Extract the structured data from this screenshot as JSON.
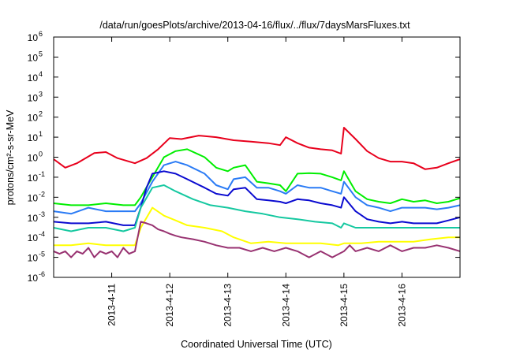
{
  "chart_data": {
    "type": "line",
    "title": "/data/run/goesPlots/archive/2013-04-16/flux/../flux/7daysMarsFluxes.txt",
    "xlabel": "Coordinated Universal Time (UTC)",
    "ylabel": "protons/cm²-s-sr-MeV",
    "y_scale": "log",
    "ylim": [
      1e-06,
      1000000.0
    ],
    "x_unit": "days",
    "xlim": [
      "2013-04-10 00:00",
      "2013-04-17 00:00"
    ],
    "grid": false,
    "legend": "none",
    "x_ticks": [
      {
        "label": "2013-4-11",
        "day": 1
      },
      {
        "label": "2013-4-12",
        "day": 2
      },
      {
        "label": "2013-4-13",
        "day": 3
      },
      {
        "label": "2013-4-14",
        "day": 4
      },
      {
        "label": "2013-4-15",
        "day": 5
      },
      {
        "label": "2013-4-16",
        "day": 6
      }
    ],
    "y_ticks": [
      {
        "base": "10",
        "exp": "-6",
        "value": -6
      },
      {
        "base": "10",
        "exp": "-5",
        "value": -5
      },
      {
        "base": "10",
        "exp": "-4",
        "value": -4
      },
      {
        "base": "10",
        "exp": "-3",
        "value": -3
      },
      {
        "base": "10",
        "exp": "-2",
        "value": -2
      },
      {
        "base": "10",
        "exp": "-1",
        "value": -1
      },
      {
        "base": "10",
        "exp": "0",
        "value": 0
      },
      {
        "base": "10",
        "exp": "1",
        "value": 1
      },
      {
        "base": "10",
        "exp": "2",
        "value": 2
      },
      {
        "base": "10",
        "exp": "3",
        "value": 3
      },
      {
        "base": "10",
        "exp": "4",
        "value": 4
      },
      {
        "base": "10",
        "exp": "5",
        "value": 5
      },
      {
        "base": "10",
        "exp": "6",
        "value": 6
      }
    ],
    "series": [
      {
        "color": "#e8001c",
        "x": [
          0,
          0.2,
          0.4,
          0.7,
          0.9,
          1.1,
          1.4,
          1.6,
          1.8,
          2.0,
          2.2,
          2.5,
          2.8,
          3.1,
          3.4,
          3.7,
          3.9,
          4.0,
          4.2,
          4.4,
          4.6,
          4.8,
          4.95,
          5.0,
          5.2,
          5.4,
          5.6,
          5.8,
          6.0,
          6.2,
          6.4,
          6.6,
          6.8,
          7.0
        ],
        "y": [
          0.8,
          0.3,
          0.5,
          1.6,
          1.8,
          0.9,
          0.5,
          0.9,
          2.5,
          9,
          8,
          12,
          10,
          7,
          6,
          5,
          4,
          10,
          5,
          3,
          2.5,
          2.2,
          1.5,
          30,
          8,
          2,
          0.9,
          0.6,
          0.6,
          0.5,
          0.25,
          0.3,
          0.5,
          0.8
        ]
      },
      {
        "color": "#00ee00",
        "x": [
          0,
          0.3,
          0.6,
          0.9,
          1.2,
          1.4,
          1.5,
          1.7,
          1.9,
          2.1,
          2.3,
          2.6,
          2.8,
          3.0,
          3.1,
          3.3,
          3.5,
          3.7,
          3.9,
          4.0,
          4.2,
          4.4,
          4.6,
          4.8,
          4.95,
          5.0,
          5.2,
          5.4,
          5.6,
          5.8,
          6.0,
          6.2,
          6.4,
          6.6,
          6.8,
          7.0
        ],
        "y": [
          0.005,
          0.004,
          0.004,
          0.005,
          0.004,
          0.004,
          0.01,
          0.1,
          1.0,
          2.0,
          2.5,
          1.0,
          0.3,
          0.2,
          0.3,
          0.4,
          0.06,
          0.05,
          0.04,
          0.02,
          0.15,
          0.16,
          0.15,
          0.1,
          0.07,
          0.2,
          0.02,
          0.008,
          0.006,
          0.005,
          0.008,
          0.006,
          0.007,
          0.005,
          0.006,
          0.009
        ]
      },
      {
        "color": "#2a7bf5",
        "x": [
          0,
          0.3,
          0.6,
          0.9,
          1.2,
          1.4,
          1.5,
          1.7,
          1.9,
          2.1,
          2.3,
          2.6,
          2.8,
          3.0,
          3.1,
          3.3,
          3.5,
          3.7,
          3.9,
          4.0,
          4.2,
          4.4,
          4.6,
          4.8,
          4.95,
          5.0,
          5.2,
          5.4,
          5.6,
          5.8,
          6.0,
          6.2,
          6.4,
          6.6,
          6.8,
          7.0
        ],
        "y": [
          0.002,
          0.0015,
          0.003,
          0.002,
          0.002,
          0.002,
          0.005,
          0.06,
          0.4,
          0.6,
          0.4,
          0.15,
          0.04,
          0.025,
          0.08,
          0.1,
          0.03,
          0.03,
          0.02,
          0.015,
          0.04,
          0.03,
          0.03,
          0.02,
          0.015,
          0.06,
          0.01,
          0.004,
          0.003,
          0.002,
          0.003,
          0.003,
          0.003,
          0.0025,
          0.003,
          0.004
        ]
      },
      {
        "color": "#0a0ad0",
        "x": [
          0,
          0.3,
          0.6,
          0.9,
          1.2,
          1.4,
          1.5,
          1.6,
          1.7,
          1.9,
          2.1,
          2.3,
          2.6,
          2.8,
          3.0,
          3.1,
          3.3,
          3.5,
          3.7,
          3.9,
          4.0,
          4.2,
          4.4,
          4.6,
          4.8,
          4.95,
          5.0,
          5.2,
          5.4,
          5.6,
          5.8,
          6.0,
          6.2,
          6.4,
          6.6,
          6.8,
          7.0
        ],
        "y": [
          0.0006,
          0.0005,
          0.0005,
          0.0006,
          0.0004,
          0.0004,
          0.003,
          0.03,
          0.15,
          0.2,
          0.15,
          0.08,
          0.03,
          0.015,
          0.012,
          0.025,
          0.03,
          0.008,
          0.007,
          0.006,
          0.005,
          0.008,
          0.007,
          0.005,
          0.004,
          0.003,
          0.01,
          0.002,
          0.0008,
          0.0006,
          0.0005,
          0.0006,
          0.0005,
          0.0005,
          0.0005,
          0.0007,
          0.001
        ]
      },
      {
        "color": "#15c8a0",
        "x": [
          0,
          0.3,
          0.6,
          0.9,
          1.2,
          1.4,
          1.5,
          1.7,
          1.9,
          2.1,
          2.4,
          2.7,
          3.0,
          3.3,
          3.6,
          3.9,
          4.2,
          4.5,
          4.8,
          4.95,
          5.0,
          5.2,
          5.5,
          5.8,
          6.1,
          6.4,
          6.7,
          7.0
        ],
        "y": [
          0.0003,
          0.0002,
          0.0003,
          0.0003,
          0.0002,
          0.0003,
          0.003,
          0.03,
          0.04,
          0.02,
          0.008,
          0.004,
          0.003,
          0.002,
          0.0015,
          0.001,
          0.0008,
          0.0006,
          0.0005,
          0.0003,
          0.0005,
          0.0003,
          0.0003,
          0.0003,
          0.0003,
          0.0003,
          0.0003,
          0.0003
        ]
      },
      {
        "color": "#ffff00",
        "x": [
          0,
          0.3,
          0.6,
          0.9,
          1.2,
          1.4,
          1.5,
          1.7,
          1.9,
          2.1,
          2.3,
          2.6,
          2.9,
          3.1,
          3.4,
          3.7,
          4.0,
          4.3,
          4.6,
          4.9,
          5.0,
          5.3,
          5.6,
          5.9,
          6.2,
          6.5,
          6.8,
          7.0
        ],
        "y": [
          4e-05,
          4e-05,
          5e-05,
          4e-05,
          4e-05,
          4e-05,
          0.0003,
          0.003,
          0.0012,
          0.0007,
          0.0004,
          0.0003,
          0.0002,
          0.0001,
          5e-05,
          6e-05,
          5e-05,
          5e-05,
          5e-05,
          4e-05,
          5e-05,
          5e-05,
          6e-05,
          6e-05,
          6e-05,
          8e-05,
          0.0001,
          0.0001
        ]
      },
      {
        "color": "#983271",
        "x": [
          0,
          0.1,
          0.2,
          0.3,
          0.4,
          0.5,
          0.6,
          0.7,
          0.8,
          0.9,
          1.0,
          1.1,
          1.2,
          1.3,
          1.4,
          1.5,
          1.6,
          1.7,
          1.8,
          1.9,
          2.0,
          2.1,
          2.2,
          2.4,
          2.6,
          2.8,
          3.0,
          3.2,
          3.4,
          3.6,
          3.8,
          4.0,
          4.2,
          4.4,
          4.6,
          4.8,
          5.0,
          5.1,
          5.2,
          5.4,
          5.6,
          5.8,
          6.0,
          6.2,
          6.4,
          6.6,
          6.8,
          7.0
        ],
        "y": [
          2e-05,
          1.5e-05,
          2e-05,
          1e-05,
          2e-05,
          1.5e-05,
          3e-05,
          1e-05,
          2e-05,
          1.5e-05,
          2e-05,
          1e-05,
          3e-05,
          1.5e-05,
          2e-05,
          0.0006,
          0.0005,
          0.0004,
          0.00025,
          0.0002,
          0.00015,
          0.00012,
          0.0001,
          8e-05,
          6e-05,
          4e-05,
          3e-05,
          3e-05,
          2e-05,
          3e-05,
          2e-05,
          3e-05,
          2e-05,
          1e-05,
          2e-05,
          1e-05,
          2e-05,
          4e-05,
          2e-05,
          3e-05,
          2e-05,
          4e-05,
          2e-05,
          3e-05,
          3e-05,
          4e-05,
          3e-05,
          2e-05
        ]
      }
    ]
  }
}
